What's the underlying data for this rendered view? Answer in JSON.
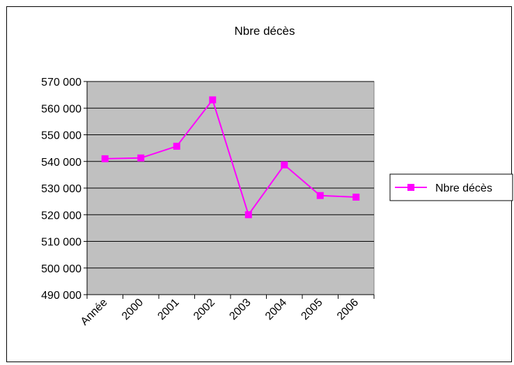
{
  "chart_data": {
    "type": "line",
    "title": "Nbre décès",
    "categories": [
      "Année",
      "2000",
      "2001",
      "2002",
      "2003",
      "2004",
      "2005",
      "2006"
    ],
    "series": [
      {
        "name": "Nbre décès",
        "values": [
          541000,
          541300,
          545700,
          563100,
          520000,
          538700,
          527200,
          526600
        ],
        "color": "#ff00ff"
      }
    ],
    "ylim": [
      490000,
      570000
    ],
    "yticks": [
      570000,
      560000,
      550000,
      540000,
      530000,
      520000,
      510000,
      500000,
      490000
    ],
    "ytick_labels": [
      "570 000",
      "560 000",
      "550 000",
      "540 000",
      "530 000",
      "520 000",
      "510 000",
      "500 000",
      "490 000"
    ],
    "grid": true,
    "plot_background": "#c0c0c0",
    "legend_position": "right"
  }
}
